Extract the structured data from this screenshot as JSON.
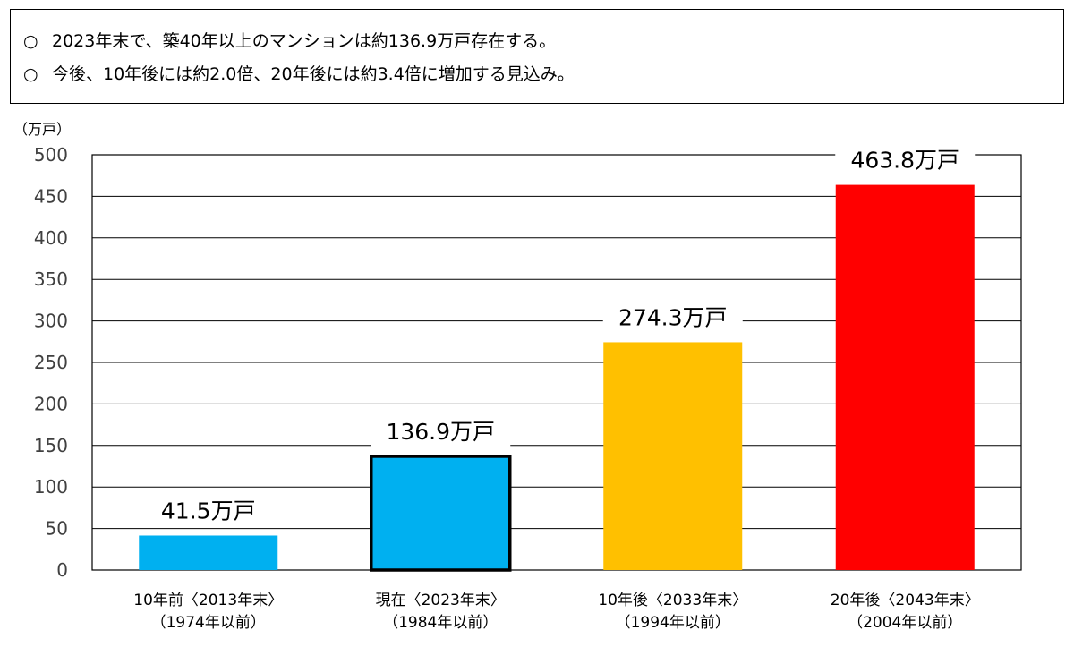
{
  "summary": {
    "bullet": "○",
    "lines": [
      "2023年末で、築40年以上のマンションは約136.9万戸存在する。",
      "今後、10年後には約2.0倍、20年後には約3.4倍に増加する見込み。"
    ]
  },
  "chart_data": {
    "type": "bar",
    "title": "",
    "xlabel": "",
    "ylabel": "（万戸）",
    "ylim": [
      0,
      500
    ],
    "yticks": [
      0,
      50,
      100,
      150,
      200,
      250,
      300,
      350,
      400,
      450,
      500
    ],
    "grid": true,
    "categories": [
      [
        "10年前〈2013年末〉",
        "（1974年以前）"
      ],
      [
        "現在〈2023年末〉",
        "（1984年以前）"
      ],
      [
        "10年後〈2033年末〉",
        "（1994年以前）"
      ],
      [
        "20年後〈2043年末〉",
        "（2004年以前）"
      ]
    ],
    "values": [
      41.5,
      136.9,
      274.3,
      463.8
    ],
    "data_labels": [
      "41.5万戸",
      "136.9万戸",
      "274.3万戸",
      "463.8万戸"
    ],
    "colors": [
      "#00b0f0",
      "#00b0f0",
      "#ffc000",
      "#ff0000"
    ],
    "highlighted_index": 1
  }
}
